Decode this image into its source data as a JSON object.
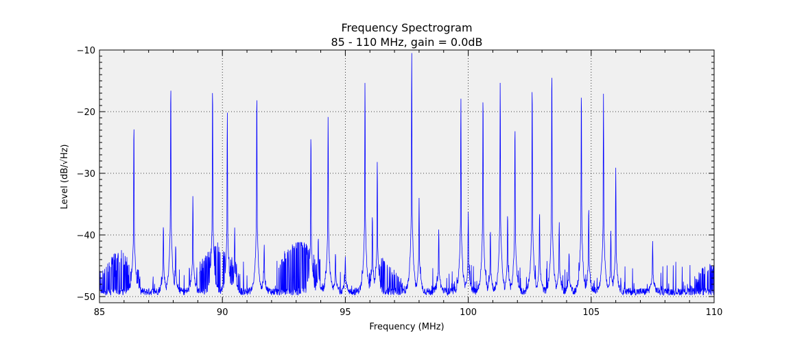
{
  "chart_data": {
    "type": "line",
    "title": "Frequency Spectrogram",
    "subtitle": "85 - 110 MHz, gain = 0.0dB",
    "xlabel": "Frequency (MHz)",
    "ylabel": "Level (dB/√Hz)",
    "xlim": [
      85,
      110
    ],
    "ylim": [
      -51,
      -10
    ],
    "xticks": [
      85,
      90,
      95,
      100,
      105,
      110
    ],
    "yticks": [
      -10,
      -20,
      -30,
      -40,
      -50
    ],
    "grid": true,
    "noise_floor": -49.2,
    "series": [
      {
        "color": "#0000ff",
        "peaks": [
          {
            "x": 86.4,
            "y": -21.5
          },
          {
            "x": 87.6,
            "y": -38.2
          },
          {
            "x": 87.9,
            "y": -14.9
          },
          {
            "x": 88.1,
            "y": -41.5
          },
          {
            "x": 88.8,
            "y": -33.5
          },
          {
            "x": 89.6,
            "y": -15.3
          },
          {
            "x": 90.2,
            "y": -19.8
          },
          {
            "x": 90.5,
            "y": -38.8
          },
          {
            "x": 91.4,
            "y": -16.5
          },
          {
            "x": 91.7,
            "y": -41.5
          },
          {
            "x": 93.6,
            "y": -23.2
          },
          {
            "x": 93.9,
            "y": -40.2
          },
          {
            "x": 94.3,
            "y": -20.5
          },
          {
            "x": 94.6,
            "y": -42.8
          },
          {
            "x": 95.0,
            "y": -43.5
          },
          {
            "x": 95.8,
            "y": -14.9
          },
          {
            "x": 96.1,
            "y": -36.5
          },
          {
            "x": 96.3,
            "y": -27.9
          },
          {
            "x": 97.7,
            "y": -10.0
          },
          {
            "x": 98.0,
            "y": -34.0
          },
          {
            "x": 98.8,
            "y": -39.0
          },
          {
            "x": 99.7,
            "y": -17.5
          },
          {
            "x": 100.0,
            "y": -36.3
          },
          {
            "x": 100.6,
            "y": -16.9
          },
          {
            "x": 100.9,
            "y": -39.0
          },
          {
            "x": 101.3,
            "y": -14.9
          },
          {
            "x": 101.6,
            "y": -36.3
          },
          {
            "x": 101.9,
            "y": -21.8
          },
          {
            "x": 102.6,
            "y": -15.1
          },
          {
            "x": 102.9,
            "y": -36.0
          },
          {
            "x": 103.4,
            "y": -12.7
          },
          {
            "x": 103.7,
            "y": -37.8
          },
          {
            "x": 104.1,
            "y": -42.7
          },
          {
            "x": 104.6,
            "y": -16.1
          },
          {
            "x": 104.9,
            "y": -35.3
          },
          {
            "x": 105.5,
            "y": -17.1
          },
          {
            "x": 105.8,
            "y": -39.2
          },
          {
            "x": 106.0,
            "y": -29.1
          },
          {
            "x": 107.5,
            "y": -41.0
          }
        ],
        "floor_bumps": [
          {
            "x": 85.8,
            "y": -43.0
          },
          {
            "x": 89.8,
            "y": -42.0
          },
          {
            "x": 93.1,
            "y": -41.0
          },
          {
            "x": 96.5,
            "y": -44.5
          },
          {
            "x": 109.8,
            "y": -45.0
          }
        ]
      }
    ]
  }
}
